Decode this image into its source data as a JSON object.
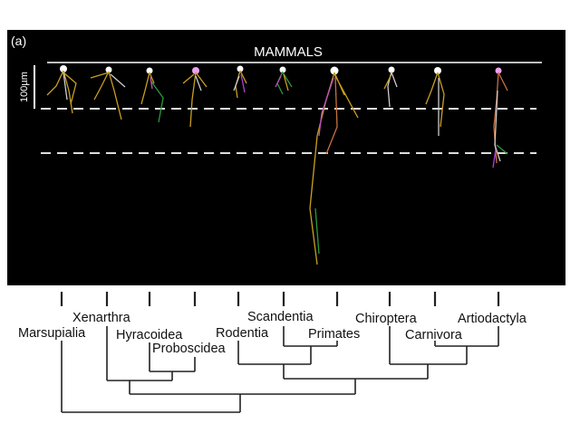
{
  "panel": {
    "label": "(a)",
    "title": "MAMMALS",
    "scale_bar": "100µm"
  },
  "taxa": [
    "Marsupialia",
    "Xenarthra",
    "Hyracoidea",
    "Proboscidea",
    "Rodentia",
    "Scandentia",
    "Primates",
    "Chiroptera",
    "Carnivora",
    "Artiodactyla"
  ]
}
